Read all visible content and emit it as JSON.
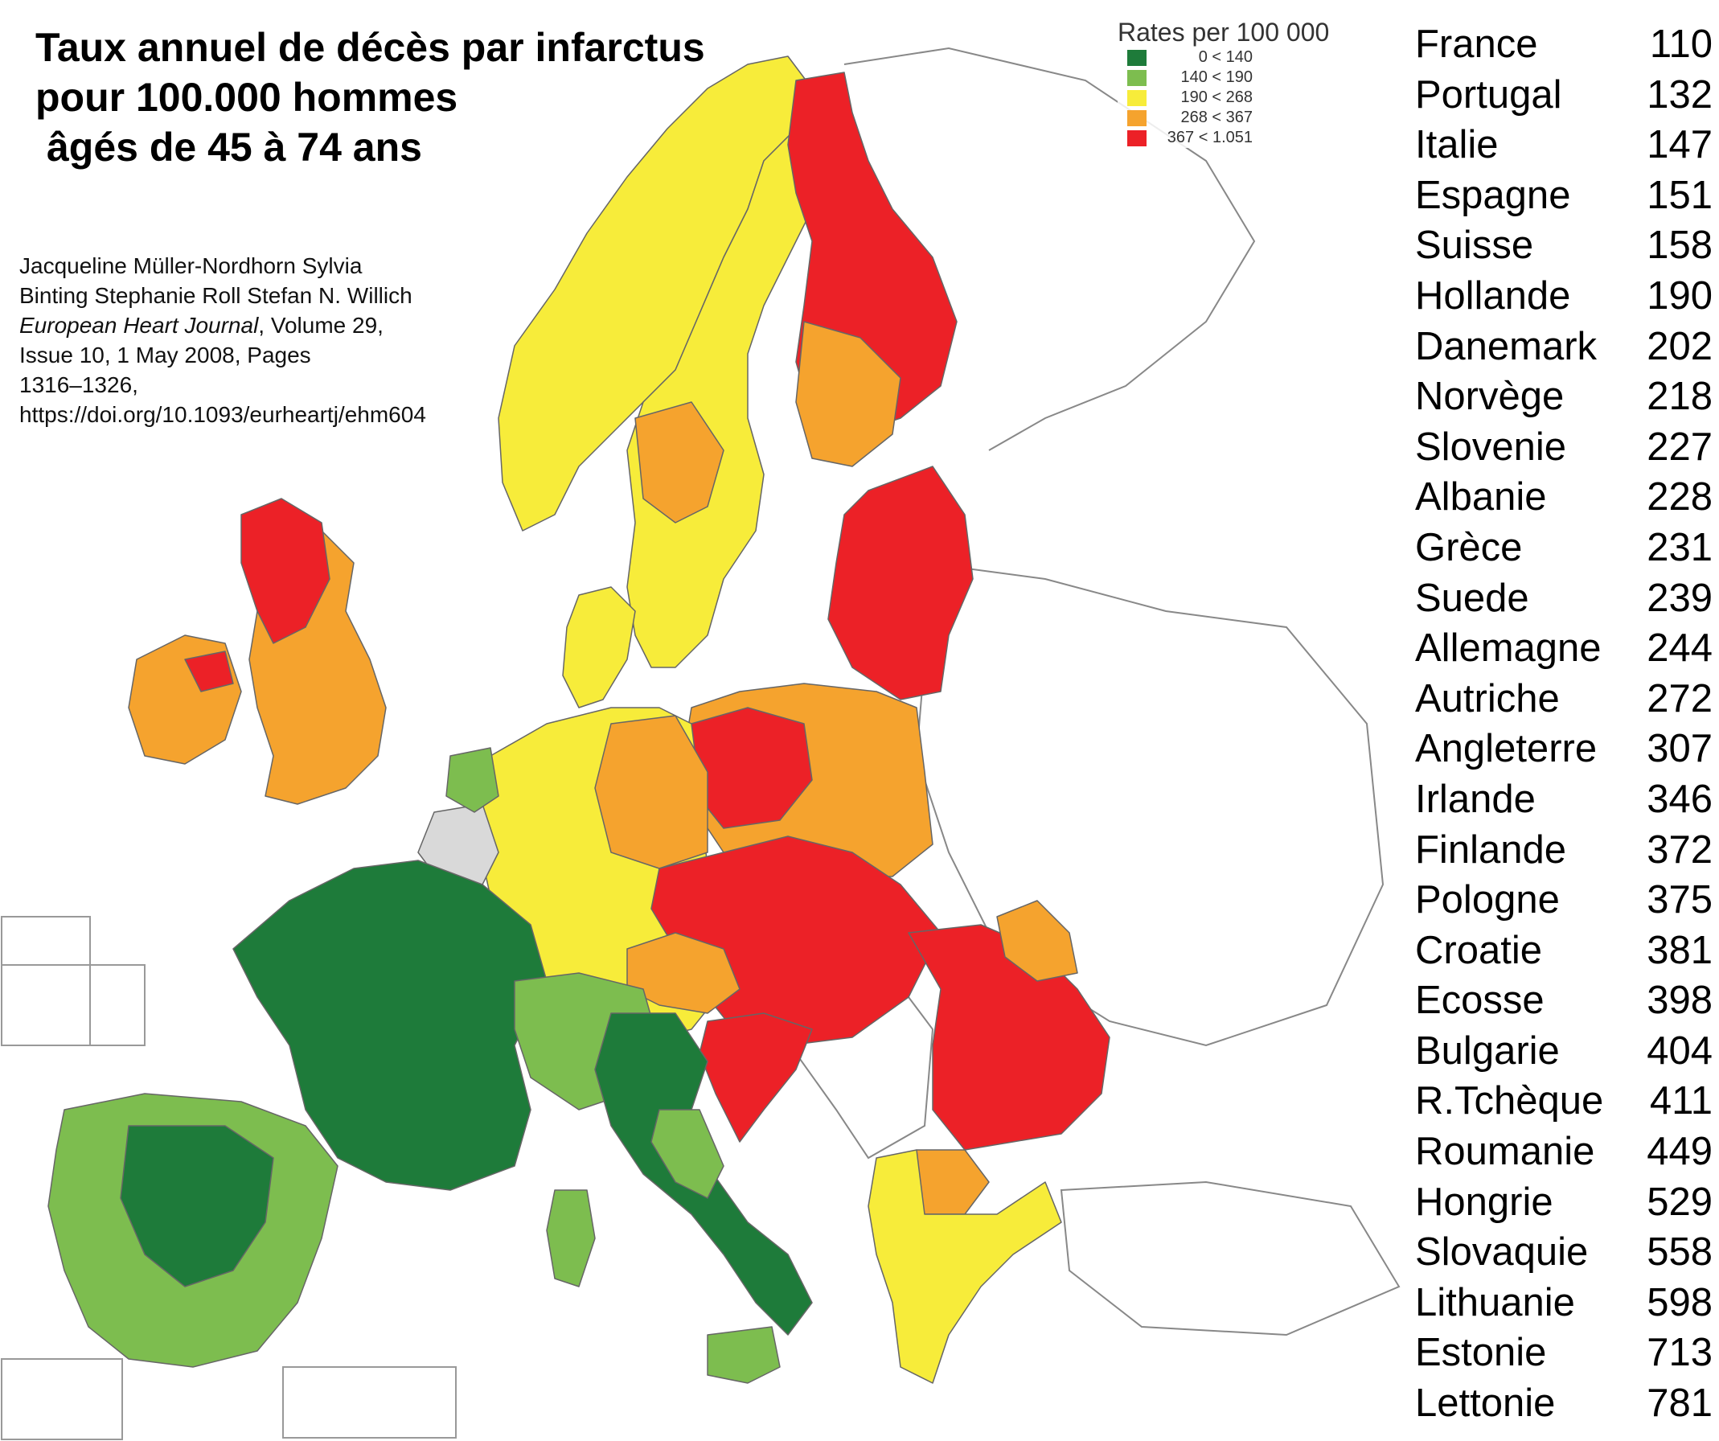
{
  "title_lines": [
    "Taux annuel de décès par infarctus",
    "pour 100.000 hommes",
    "âgés de 45 à 74 ans"
  ],
  "citation": {
    "line1": "Jacqueline Müller-Nordhorn  Sylvia",
    "line2": "Binting  Stephanie Roll  Stefan N. Willich",
    "journal": "European Heart Journal",
    "journal_rest": ", Volume 29,",
    "line4": "Issue 10, 1 May 2008, Pages",
    "line5": "1316–1326,",
    "doi": "https://doi.org/10.1093/eurheartj/ehm604"
  },
  "legend": {
    "title": "Rates per 100 000",
    "items": [
      {
        "label": "0 < 140",
        "color": "#1e7b3a"
      },
      {
        "label": "140 < 190",
        "color": "#7dbd4f"
      },
      {
        "label": "190 < 268",
        "color": "#f7ec3a"
      },
      {
        "label": "268 < 367",
        "color": "#f5a32e"
      },
      {
        "label": "367 < 1.051",
        "color": "#ec2127"
      }
    ]
  },
  "countries": [
    {
      "name": "France",
      "value": "110"
    },
    {
      "name": "Portugal",
      "value": "132"
    },
    {
      "name": "Italie",
      "value": "147"
    },
    {
      "name": "Espagne",
      "value": "151"
    },
    {
      "name": "Suisse",
      "value": "158"
    },
    {
      "name": "Hollande",
      "value": "190"
    },
    {
      "name": "Danemark",
      "value": "202"
    },
    {
      "name": "Norvège",
      "value": "218"
    },
    {
      "name": "Slovenie",
      "value": "227"
    },
    {
      "name": "Albanie",
      "value": "228"
    },
    {
      "name": "Grèce",
      "value": "231"
    },
    {
      "name": "Suede",
      "value": "239"
    },
    {
      "name": "Allemagne",
      "value": "244"
    },
    {
      "name": "Autriche",
      "value": "272"
    },
    {
      "name": "Angleterre",
      "value": "307"
    },
    {
      "name": "Irlande",
      "value": "346"
    },
    {
      "name": "Finlande",
      "value": "372"
    },
    {
      "name": "Pologne",
      "value": "375"
    },
    {
      "name": "Croatie",
      "value": "381"
    },
    {
      "name": "Ecosse",
      "value": "398"
    },
    {
      "name": "Bulgarie",
      "value": "404"
    },
    {
      "name": "R.Tchèque",
      "value": "411"
    },
    {
      "name": "Roumanie",
      "value": "449"
    },
    {
      "name": "Hongrie",
      "value": "529"
    },
    {
      "name": "Slovaquie",
      "value": "558"
    },
    {
      "name": "Lithuanie",
      "value": "598"
    },
    {
      "name": "Estonie",
      "value": "713"
    },
    {
      "name": "Lettonie",
      "value": "781"
    }
  ],
  "colors": {
    "dark_green": "#1e7b3a",
    "light_green": "#7dbd4f",
    "yellow": "#f7ec3a",
    "orange": "#f5a32e",
    "red": "#ec2127",
    "no_data": "#ffffff",
    "grey": "#d9d9d9",
    "sea": "#ffffff"
  }
}
